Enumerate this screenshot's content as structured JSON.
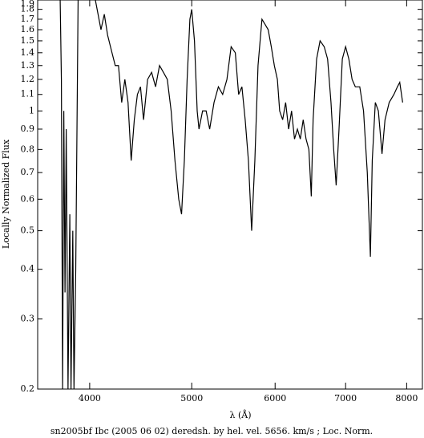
{
  "chart_data": {
    "type": "line",
    "caption": "sn2005bf Ibc (2005 06 02) deredsh. by hel. vel.  5656. km/s ;  Loc. Norm.",
    "xlabel": "λ (Å)",
    "ylabel": "Locally Normalized Flux",
    "xscale": "log",
    "yscale": "log",
    "xlim": [
      3570,
      8280
    ],
    "ylim": [
      0.2,
      1.9
    ],
    "xticks": [
      4000,
      5000,
      6000,
      7000,
      8000
    ],
    "yticks": [
      0.2,
      0.3,
      0.4,
      0.5,
      0.6,
      0.7,
      0.8,
      0.9,
      1,
      1.1,
      1.2,
      1.3,
      1.4,
      1.5,
      1.6,
      1.7,
      1.8,
      1.9
    ],
    "series": [
      {
        "color": "#000000",
        "x": [
          3750,
          3760,
          3770,
          3780,
          3790,
          3800,
          3815,
          3830,
          3840,
          3855,
          3865,
          3880,
          3900,
          3950,
          4050,
          4100,
          4130,
          4160,
          4200,
          4230,
          4260,
          4290,
          4320,
          4350,
          4380,
          4410,
          4440,
          4470,
          4500,
          4540,
          4580,
          4620,
          4660,
          4700,
          4740,
          4780,
          4820,
          4860,
          4890,
          4920,
          4950,
          4980,
          5000,
          5030,
          5060,
          5080,
          5120,
          5160,
          5200,
          5250,
          5300,
          5350,
          5400,
          5450,
          5500,
          5540,
          5580,
          5620,
          5660,
          5700,
          5740,
          5780,
          5830,
          5870,
          5910,
          5950,
          5990,
          6030,
          6060,
          6100,
          6140,
          6180,
          6220,
          6260,
          6300,
          6340,
          6380,
          6420,
          6460,
          6494,
          6520,
          6570,
          6620,
          6680,
          6730,
          6780,
          6820,
          6857,
          6900,
          6950,
          7000,
          7050,
          7100,
          7150,
          7220,
          7280,
          7340,
          7390,
          7420,
          7470,
          7520,
          7580,
          7630,
          7700,
          7780,
          7840,
          7880,
          7930
        ],
        "values": [
          1.9,
          1.2,
          0.2,
          1.0,
          0.35,
          0.9,
          0.2,
          0.55,
          0.2,
          0.5,
          0.2,
          0.4,
          1.9,
          null,
          1.9,
          1.6,
          1.75,
          1.55,
          1.4,
          1.3,
          1.3,
          1.05,
          1.2,
          1.05,
          0.75,
          0.95,
          1.1,
          1.15,
          0.95,
          1.2,
          1.25,
          1.15,
          1.3,
          1.25,
          1.2,
          1.0,
          0.75,
          0.6,
          0.55,
          0.75,
          1.2,
          1.7,
          1.8,
          1.5,
          1.0,
          0.9,
          1.0,
          1.0,
          0.9,
          1.05,
          1.15,
          1.1,
          1.2,
          1.45,
          1.4,
          1.1,
          1.15,
          0.95,
          0.75,
          0.5,
          0.75,
          1.3,
          1.7,
          1.65,
          1.6,
          1.45,
          1.3,
          1.2,
          1.0,
          0.95,
          1.05,
          0.9,
          1.0,
          0.85,
          0.9,
          0.85,
          0.95,
          0.85,
          0.8,
          0.61,
          0.95,
          1.35,
          1.5,
          1.45,
          1.35,
          1.05,
          0.8,
          0.65,
          0.9,
          1.35,
          1.45,
          1.35,
          1.2,
          1.15,
          1.15,
          1.0,
          0.7,
          0.43,
          0.75,
          1.05,
          1.0,
          0.78,
          0.95,
          1.05,
          1.1,
          1.15,
          1.18,
          1.05
        ]
      }
    ]
  }
}
